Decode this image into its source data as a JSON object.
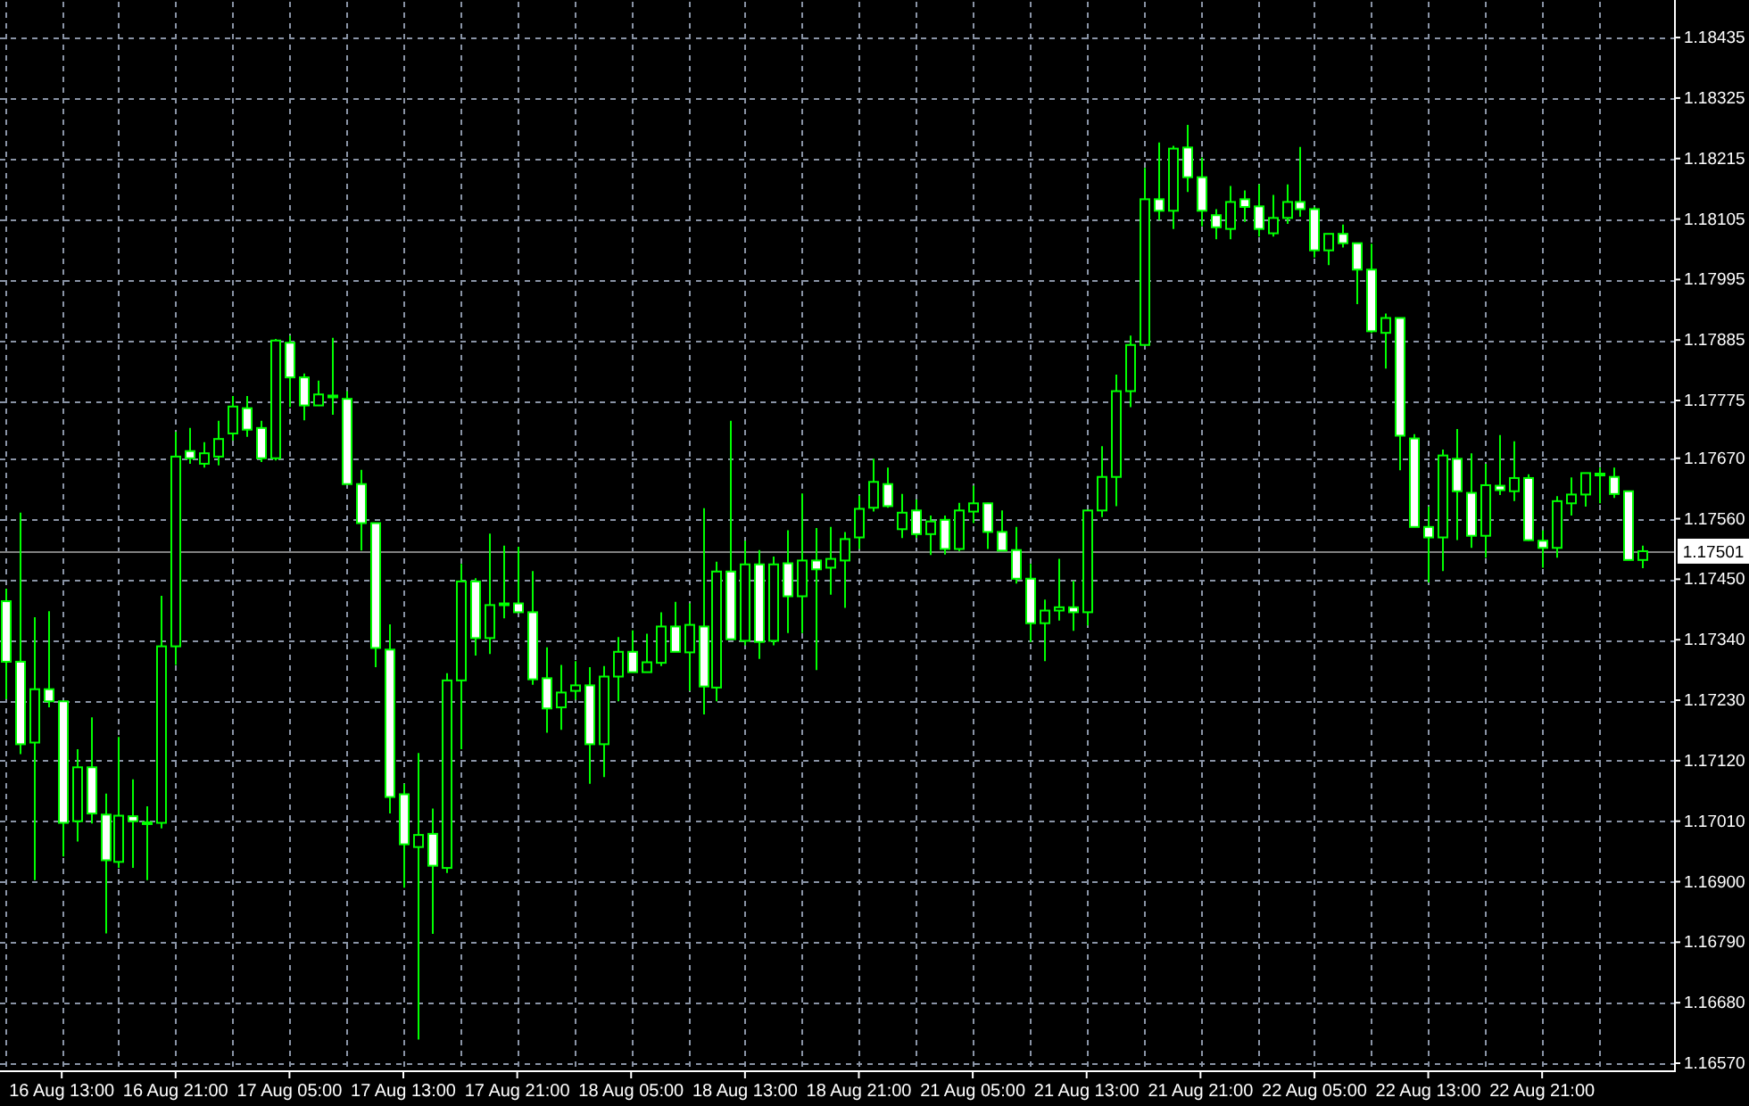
{
  "chart_data": {
    "type": "candlestick",
    "color": "#00ff00",
    "grid": true,
    "categories": [
      null,
      null,
      null,
      null,
      "16 Aug 13:00",
      null,
      null,
      null,
      null,
      null,
      null,
      null,
      "16 Aug 21:00",
      null,
      null,
      null,
      null,
      null,
      null,
      null,
      "17 Aug 05:00",
      null,
      null,
      null,
      null,
      null,
      null,
      null,
      "17 Aug 13:00",
      null,
      null,
      null,
      null,
      null,
      null,
      null,
      "17 Aug 21:00",
      null,
      null,
      null,
      null,
      null,
      null,
      null,
      "18 Aug 05:00",
      null,
      null,
      null,
      null,
      null,
      null,
      null,
      "18 Aug 13:00",
      null,
      null,
      null,
      null,
      null,
      null,
      null,
      "18 Aug 21:00",
      null,
      null,
      null,
      null,
      null,
      null,
      null,
      "21 Aug 05:00",
      null,
      null,
      null,
      null,
      null,
      null,
      null,
      "21 Aug 13:00",
      null,
      null,
      null,
      null,
      null,
      null,
      null,
      "21 Aug 21:00",
      null,
      null,
      null,
      null,
      null,
      null,
      null,
      "22 Aug 05:00",
      null,
      null,
      null,
      null,
      null,
      null,
      null,
      "22 Aug 13:00",
      null,
      null,
      null,
      null,
      null,
      null,
      null,
      "22 Aug 21:00",
      null,
      null,
      null,
      null,
      null,
      null,
      null
    ],
    "ohlc": [
      [
        1.1741,
        1.17433,
        1.17232,
        1.173
      ],
      [
        1.173,
        1.17571,
        1.17132,
        1.1715
      ],
      [
        1.17153,
        1.17381,
        1.16903,
        1.1725
      ],
      [
        1.1725,
        1.17392,
        1.17217,
        1.17228
      ],
      [
        1.17228,
        1.17228,
        1.16946,
        1.17007
      ],
      [
        1.1701,
        1.17141,
        1.16973,
        1.17108
      ],
      [
        1.17108,
        1.17199,
        1.17006,
        1.17024
      ],
      [
        1.17022,
        1.1706,
        1.16806,
        1.16939
      ],
      [
        1.16936,
        1.17163,
        1.16925,
        1.1702
      ],
      [
        1.17019,
        1.17086,
        1.16925,
        1.1701
      ],
      [
        1.17008,
        1.17037,
        1.16903,
        1.17008
      ],
      [
        1.17007,
        1.1742,
        1.16997,
        1.17328
      ],
      [
        1.17328,
        1.17718,
        1.17294,
        1.17673
      ],
      [
        1.17683,
        1.17725,
        1.1766,
        1.1767
      ],
      [
        1.1766,
        1.17699,
        1.17653,
        1.17679
      ],
      [
        1.17673,
        1.17738,
        1.17657,
        1.17705
      ],
      [
        1.17715,
        1.17783,
        1.17702,
        1.17764
      ],
      [
        1.17761,
        1.17783,
        1.17709,
        1.17722
      ],
      [
        1.17725,
        1.17738,
        1.17663,
        1.1767
      ],
      [
        1.1767,
        1.17887,
        1.17666,
        1.17884
      ],
      [
        1.1788,
        1.17893,
        1.17763,
        1.17817
      ],
      [
        1.17817,
        1.17824,
        1.17739,
        1.17766
      ],
      [
        1.17766,
        1.17811,
        1.17766,
        1.17786
      ],
      [
        1.17784,
        1.17889,
        1.17749,
        1.17784
      ],
      [
        1.17778,
        1.17792,
        1.17623,
        1.17623
      ],
      [
        1.17623,
        1.17649,
        1.17502,
        1.17552
      ],
      [
        1.17552,
        1.17552,
        1.1729,
        1.17325
      ],
      [
        1.17322,
        1.17368,
        1.17024,
        1.17054
      ],
      [
        1.17059,
        1.17078,
        1.16889,
        1.16968
      ],
      [
        1.16963,
        1.17134,
        1.16613,
        1.16985
      ],
      [
        1.16987,
        1.17033,
        1.16805,
        1.16929
      ],
      [
        1.16925,
        1.17279,
        1.16916,
        1.17266
      ],
      [
        1.17266,
        1.17478,
        1.17141,
        1.17446
      ],
      [
        1.17446,
        1.17452,
        1.17311,
        1.17343
      ],
      [
        1.17343,
        1.17533,
        1.17314,
        1.17403
      ],
      [
        1.17406,
        1.17511,
        1.17379,
        1.17406
      ],
      [
        1.17406,
        1.17509,
        1.1739,
        1.1739
      ],
      [
        1.1739,
        1.17465,
        1.17258,
        1.17268
      ],
      [
        1.1727,
        1.17326,
        1.17171,
        1.17215
      ],
      [
        1.17217,
        1.17294,
        1.17176,
        1.17244
      ],
      [
        1.17247,
        1.17301,
        1.17231,
        1.17257
      ],
      [
        1.17257,
        1.1729,
        1.17078,
        1.1715
      ],
      [
        1.1715,
        1.17292,
        1.1709,
        1.17273
      ],
      [
        1.17273,
        1.17345,
        1.17228,
        1.17318
      ],
      [
        1.17318,
        1.17357,
        1.17281,
        1.17281
      ],
      [
        1.17281,
        1.17351,
        1.17281,
        1.17299
      ],
      [
        1.17298,
        1.1739,
        1.17292,
        1.17364
      ],
      [
        1.17364,
        1.17409,
        1.17318,
        1.17318
      ],
      [
        1.17317,
        1.17406,
        1.17247,
        1.17367
      ],
      [
        1.17364,
        1.17579,
        1.17204,
        1.17255
      ],
      [
        1.17253,
        1.17482,
        1.17228,
        1.17464
      ],
      [
        1.17464,
        1.17738,
        1.17341,
        1.17341
      ],
      [
        1.17338,
        1.1752,
        1.1733,
        1.17477
      ],
      [
        1.17477,
        1.17503,
        1.17305,
        1.17336
      ],
      [
        1.17338,
        1.17491,
        1.1733,
        1.17477
      ],
      [
        1.17479,
        1.17539,
        1.17352,
        1.17419
      ],
      [
        1.17419,
        1.17606,
        1.17352,
        1.17484
      ],
      [
        1.17484,
        1.17543,
        1.17285,
        1.17468
      ],
      [
        1.17471,
        1.17545,
        1.17422,
        1.17487
      ],
      [
        1.17484,
        1.17536,
        1.17398,
        1.17523
      ],
      [
        1.17526,
        1.17602,
        1.17505,
        1.17578
      ],
      [
        1.1758,
        1.17669,
        1.17573,
        1.17627
      ],
      [
        1.17623,
        1.17653,
        1.1758,
        1.17583
      ],
      [
        1.17541,
        1.17605,
        1.17525,
        1.17571
      ],
      [
        1.17575,
        1.17595,
        1.17525,
        1.17532
      ],
      [
        1.17532,
        1.17566,
        1.17494,
        1.17555
      ],
      [
        1.17558,
        1.17566,
        1.17495,
        1.17505
      ],
      [
        1.17505,
        1.17589,
        1.17501,
        1.17575
      ],
      [
        1.17573,
        1.1762,
        1.17552,
        1.17588
      ],
      [
        1.17588,
        1.17589,
        1.17505,
        1.17536
      ],
      [
        1.17536,
        1.17575,
        1.17502,
        1.17502
      ],
      [
        1.17503,
        1.17545,
        1.17442,
        1.17451
      ],
      [
        1.17451,
        1.17478,
        1.17336,
        1.1737
      ],
      [
        1.1737,
        1.17413,
        1.17301,
        1.17393
      ],
      [
        1.17393,
        1.17487,
        1.17375,
        1.17399
      ],
      [
        1.17399,
        1.17447,
        1.17356,
        1.1739
      ],
      [
        1.1739,
        1.17575,
        1.17366,
        1.17575
      ],
      [
        1.17575,
        1.17692,
        1.17563,
        1.17636
      ],
      [
        1.17636,
        1.17822,
        1.17583,
        1.17792
      ],
      [
        1.17792,
        1.17893,
        1.17763,
        1.17876
      ],
      [
        1.17876,
        1.18198,
        1.17876,
        1.18141
      ],
      [
        1.18141,
        1.18244,
        1.18103,
        1.1812
      ],
      [
        1.1812,
        1.18238,
        1.18087,
        1.18233
      ],
      [
        1.18235,
        1.18276,
        1.18154,
        1.18181
      ],
      [
        1.18181,
        1.18217,
        1.18092,
        1.1812
      ],
      [
        1.18112,
        1.18123,
        1.18068,
        1.1809
      ],
      [
        1.18087,
        1.18165,
        1.18068,
        1.18136
      ],
      [
        1.18141,
        1.18157,
        1.181,
        1.18127
      ],
      [
        1.18128,
        1.18168,
        1.18073,
        1.18087
      ],
      [
        1.18079,
        1.18149,
        1.18073,
        1.18107
      ],
      [
        1.18107,
        1.18168,
        1.18096,
        1.18136
      ],
      [
        1.18136,
        1.18236,
        1.18109,
        1.18123
      ],
      [
        1.18123,
        1.18127,
        1.18035,
        1.18048
      ],
      [
        1.18048,
        1.18078,
        1.18021,
        1.18078
      ],
      [
        1.18078,
        1.18095,
        1.18053,
        1.18061
      ],
      [
        1.18061,
        1.18061,
        1.1795,
        1.18013
      ],
      [
        1.18013,
        1.1806,
        1.17898,
        1.17901
      ],
      [
        1.17898,
        1.17933,
        1.17833,
        1.17925
      ],
      [
        1.17925,
        1.17925,
        1.17648,
        1.17711
      ],
      [
        1.17706,
        1.17714,
        1.17545,
        1.17545
      ],
      [
        1.17545,
        1.17582,
        1.17444,
        1.17526
      ],
      [
        1.17526,
        1.17686,
        1.17465,
        1.17675
      ],
      [
        1.17669,
        1.17723,
        1.17521,
        1.1761
      ],
      [
        1.17607,
        1.17679,
        1.17507,
        1.17529
      ],
      [
        1.17529,
        1.1766,
        1.17489,
        1.17621
      ],
      [
        1.1762,
        1.17712,
        1.17603,
        1.17612
      ],
      [
        1.1761,
        1.17701,
        1.17592,
        1.17634
      ],
      [
        1.17634,
        1.17641,
        1.1752,
        1.17521
      ],
      [
        1.1752,
        1.17539,
        1.17471,
        1.17507
      ],
      [
        1.17507,
        1.17601,
        1.17489,
        1.17592
      ],
      [
        1.17588,
        1.17635,
        1.17566,
        1.17604
      ],
      [
        1.17604,
        1.17643,
        1.17582,
        1.17643
      ],
      [
        1.17642,
        1.17653,
        1.17588,
        1.17642
      ],
      [
        1.17636,
        1.17653,
        1.17598,
        1.17605
      ],
      [
        1.1761,
        1.1761,
        1.17485,
        1.17485
      ],
      [
        1.17485,
        1.17511,
        1.1747,
        1.17501
      ]
    ],
    "ylim": [
      1.16557,
      1.185
    ],
    "yticks": [
      {
        "value": 1.1657,
        "label": "1.16570"
      },
      {
        "value": 1.1668,
        "label": "1.16680"
      },
      {
        "value": 1.1679,
        "label": "1.16790"
      },
      {
        "value": 1.169,
        "label": "1.16900"
      },
      {
        "value": 1.1701,
        "label": "1.17010"
      },
      {
        "value": 1.1712,
        "label": "1.17120"
      },
      {
        "value": 1.1723,
        "label": "1.17230"
      },
      {
        "value": 1.1734,
        "label": "1.17340"
      },
      {
        "value": 1.1745,
        "label": "1.17450"
      },
      {
        "value": 1.1756,
        "label": "1.17560"
      },
      {
        "value": 1.1767,
        "label": "1.17670"
      },
      {
        "value": 1.17775,
        "label": "1.17775"
      },
      {
        "value": 1.17885,
        "label": "1.17885"
      },
      {
        "value": 1.17995,
        "label": "1.17995"
      },
      {
        "value": 1.18105,
        "label": "1.18105"
      },
      {
        "value": 1.18215,
        "label": "1.18215"
      },
      {
        "value": 1.18325,
        "label": "1.18325"
      },
      {
        "value": 1.18435,
        "label": "1.18435"
      }
    ],
    "ref_lines": [
      {
        "axis": "y",
        "value": 1.17501,
        "label": "1.17501",
        "color": "#808080"
      }
    ]
  }
}
